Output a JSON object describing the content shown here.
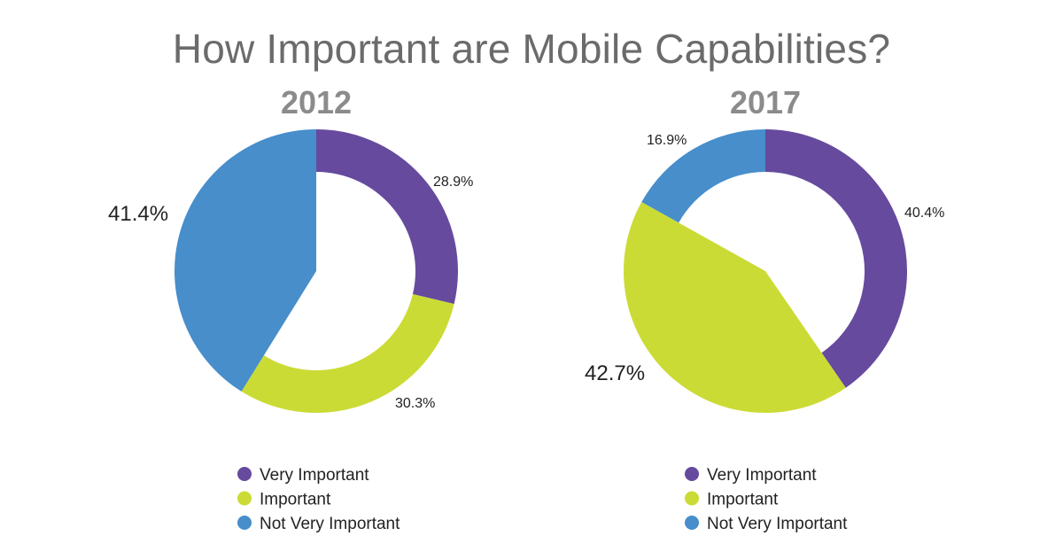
{
  "title": "How Important are Mobile Capabilities?",
  "chart_data": [
    {
      "type": "pie",
      "title": "2012",
      "categories": [
        "Very Important",
        "Important",
        "Not Very Important"
      ],
      "values": [
        28.9,
        30.3,
        41.4
      ],
      "value_labels": [
        "28.9%",
        "30.3%",
        "41.4%"
      ],
      "colors": [
        "#664a9e",
        "#cbdb35",
        "#478ecb"
      ],
      "legend": {
        "position": "bottom"
      }
    },
    {
      "type": "pie",
      "title": "2017",
      "categories": [
        "Very Important",
        "Important",
        "Not Very Important"
      ],
      "values": [
        40.4,
        42.7,
        16.9
      ],
      "value_labels": [
        "40.4%",
        "42.7%",
        "16.9%"
      ],
      "colors": [
        "#664a9e",
        "#cbdb35",
        "#478ecb"
      ],
      "legend": {
        "position": "bottom"
      }
    }
  ]
}
